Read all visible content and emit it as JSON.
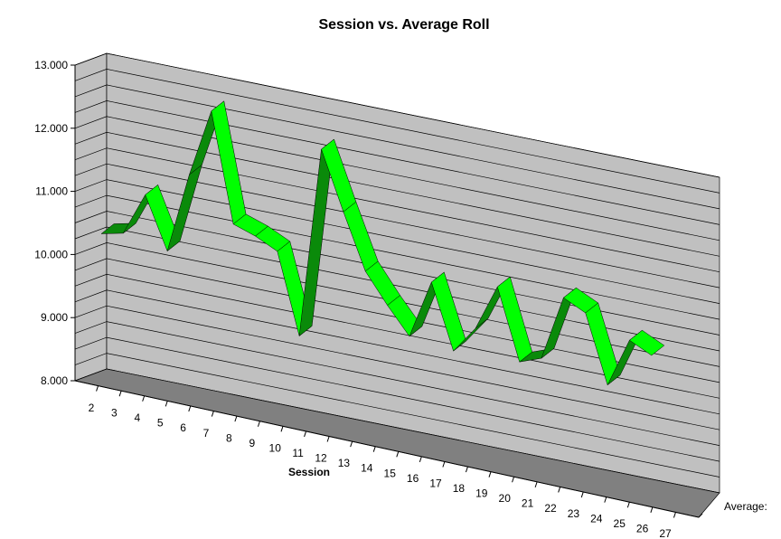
{
  "chart_data": {
    "type": "line",
    "title": "Session vs. Average Roll",
    "xlabel": "Session",
    "ylabel": "",
    "depth_label": "Average:",
    "ylim": [
      8,
      13
    ],
    "y_ticks": [
      "8.000",
      "9.000",
      "10.000",
      "11.000",
      "12.000",
      "13.000"
    ],
    "categories": [
      "2",
      "3",
      "4",
      "5",
      "6",
      "7",
      "8",
      "9",
      "10",
      "11",
      "12",
      "13",
      "14",
      "15",
      "16",
      "17",
      "18",
      "19",
      "20",
      "21",
      "22",
      "23",
      "24",
      "25",
      "26",
      "27"
    ],
    "series": [
      {
        "name": "Average:",
        "values": [
          10.4,
          10.45,
          11.1,
          10.25,
          11.5,
          12.55,
          10.8,
          10.65,
          10.45,
          9.15,
          12.15,
          11.2,
          10.3,
          9.8,
          9.35,
          10.25,
          9.2,
          9.6,
          10.3,
          9.15,
          9.25,
          10.25,
          10.05,
          8.95,
          9.7,
          9.5
        ],
        "color": "#00ff00",
        "shadow_color": "#0a8a0a"
      }
    ],
    "wall_color": "#c0c0c0",
    "floor_color": "#808080",
    "grid": true
  }
}
